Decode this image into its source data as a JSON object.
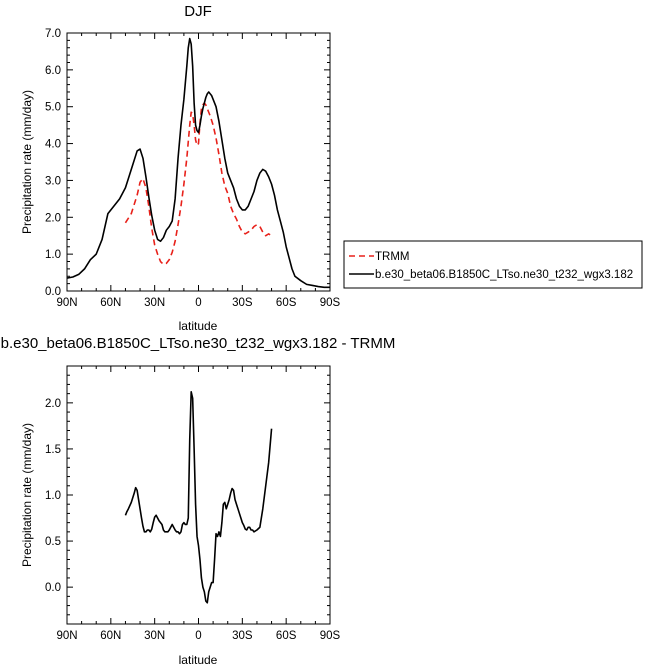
{
  "chart_data": [
    {
      "type": "line",
      "title": "DJF",
      "xlabel": "latitude",
      "ylabel": "Precipitation rate (mm/day)",
      "x_ticks": [
        -90,
        -60,
        -30,
        0,
        30,
        60,
        90
      ],
      "x_tick_labels": [
        "90N",
        "60N",
        "30N",
        "0",
        "30S",
        "60S",
        "90S"
      ],
      "y_ticks": [
        0,
        1,
        2,
        3,
        4,
        5,
        6,
        7
      ],
      "y_tick_labels": [
        "0.0",
        "1.0",
        "2.0",
        "3.0",
        "4.0",
        "5.0",
        "6.0",
        "7.0"
      ],
      "xlim": [
        -90,
        90
      ],
      "ylim": [
        0,
        7
      ],
      "legend": "outside-right",
      "series": [
        {
          "name": "TRMM",
          "color": "#e8211a",
          "dash": true,
          "x": [
            -50,
            -46,
            -42,
            -40,
            -38,
            -36,
            -34,
            -32,
            -30,
            -28,
            -26,
            -24,
            -22,
            -20,
            -18,
            -16,
            -14,
            -12,
            -10,
            -8,
            -6,
            -5,
            -4,
            -3,
            -2,
            -1,
            0,
            1,
            2,
            3,
            4,
            5,
            6,
            7,
            8,
            10,
            12,
            14,
            16,
            18,
            20,
            22,
            24,
            26,
            28,
            30,
            32,
            34,
            36,
            38,
            40,
            42,
            44,
            46,
            48,
            50
          ],
          "y": [
            1.85,
            2.1,
            2.6,
            2.95,
            3.05,
            2.8,
            2.3,
            1.7,
            1.25,
            1.0,
            0.8,
            0.72,
            0.75,
            0.85,
            1.05,
            1.35,
            1.8,
            2.3,
            2.9,
            3.6,
            4.5,
            4.85,
            4.8,
            4.5,
            4.1,
            3.95,
            4.0,
            4.55,
            4.95,
            5.05,
            5.1,
            5.05,
            4.95,
            4.85,
            4.75,
            4.5,
            4.15,
            3.7,
            3.2,
            2.85,
            2.65,
            2.3,
            2.1,
            1.95,
            1.75,
            1.6,
            1.55,
            1.6,
            1.65,
            1.75,
            1.8,
            1.75,
            1.6,
            1.5,
            1.55,
            1.5
          ]
        },
        {
          "name": "b.e30_beta06.B1850C_LTso.ne30_t232_wgx3.182",
          "color": "#000000",
          "dash": false,
          "x": [
            -90,
            -86,
            -82,
            -78,
            -74,
            -70,
            -66,
            -62,
            -58,
            -54,
            -50,
            -46,
            -42,
            -40,
            -38,
            -36,
            -34,
            -32,
            -30,
            -28,
            -26,
            -24,
            -22,
            -20,
            -18,
            -16,
            -14,
            -12,
            -10,
            -8,
            -7,
            -6,
            -5,
            -4,
            -3,
            -2,
            -1,
            0,
            1,
            2,
            3,
            4,
            5,
            6,
            7,
            8,
            9,
            10,
            12,
            14,
            16,
            18,
            20,
            22,
            24,
            26,
            28,
            30,
            32,
            34,
            36,
            38,
            40,
            42,
            44,
            46,
            48,
            50,
            52,
            54,
            56,
            58,
            60,
            62,
            64,
            66,
            70,
            74,
            78,
            82,
            86,
            90
          ],
          "y": [
            0.35,
            0.38,
            0.45,
            0.6,
            0.85,
            1.0,
            1.4,
            2.1,
            2.3,
            2.5,
            2.8,
            3.3,
            3.8,
            3.85,
            3.6,
            3.1,
            2.55,
            2.05,
            1.65,
            1.4,
            1.35,
            1.45,
            1.65,
            1.75,
            1.9,
            2.5,
            3.6,
            4.5,
            5.2,
            6.1,
            6.6,
            6.85,
            6.7,
            6.1,
            5.1,
            4.5,
            4.35,
            4.3,
            4.5,
            4.75,
            4.95,
            5.1,
            5.25,
            5.35,
            5.4,
            5.35,
            5.3,
            5.2,
            5.0,
            4.6,
            4.1,
            3.6,
            3.2,
            3.0,
            2.8,
            2.5,
            2.3,
            2.2,
            2.2,
            2.3,
            2.5,
            2.7,
            3.0,
            3.2,
            3.3,
            3.25,
            3.1,
            2.9,
            2.6,
            2.2,
            1.9,
            1.6,
            1.2,
            0.9,
            0.6,
            0.4,
            0.28,
            0.18,
            0.15,
            0.12,
            0.1,
            0.1
          ]
        }
      ]
    },
    {
      "type": "line",
      "title": "b.e30_beta06.B1850C_LTso.ne30_t232_wgx3.182 - TRMM",
      "xlabel": "latitude",
      "ylabel": "Precipitation rate (mm/day)",
      "x_ticks": [
        -90,
        -60,
        -30,
        0,
        30,
        60,
        90
      ],
      "x_tick_labels": [
        "90N",
        "60N",
        "30N",
        "0",
        "30S",
        "60S",
        "90S"
      ],
      "y_ticks": [
        0,
        0.5,
        1,
        1.5,
        2
      ],
      "y_tick_labels": [
        "0.0",
        "0.5",
        "1.0",
        "1.5",
        "2.0"
      ],
      "xlim": [
        -90,
        90
      ],
      "ylim": [
        -0.4,
        2.4
      ],
      "series": [
        {
          "color": "#000000",
          "dash": false,
          "x": [
            -50,
            -49,
            -48,
            -46,
            -44,
            -43,
            -42,
            -41,
            -40,
            -39,
            -38,
            -37,
            -36,
            -35,
            -34,
            -33,
            -32,
            -31,
            -30,
            -29,
            -28,
            -27,
            -26,
            -25,
            -24,
            -23,
            -22,
            -21,
            -20,
            -19,
            -18,
            -17,
            -16,
            -15,
            -14,
            -13,
            -12,
            -11,
            -10,
            -9,
            -8,
            -7,
            -6,
            -5,
            -4,
            -3,
            -2,
            -1,
            0,
            1,
            2,
            3,
            4,
            5,
            6,
            7,
            8,
            9,
            10,
            11,
            12,
            13,
            14,
            15,
            16,
            17,
            18,
            19,
            20,
            21,
            22,
            23,
            24,
            25,
            26,
            27,
            28,
            29,
            30,
            31,
            32,
            33,
            34,
            35,
            36,
            37,
            38,
            40,
            42,
            44,
            46,
            48,
            50
          ],
          "y": [
            0.78,
            0.82,
            0.85,
            0.92,
            1.02,
            1.08,
            1.05,
            0.95,
            0.85,
            0.75,
            0.66,
            0.6,
            0.6,
            0.62,
            0.62,
            0.6,
            0.63,
            0.7,
            0.76,
            0.78,
            0.75,
            0.72,
            0.7,
            0.68,
            0.62,
            0.6,
            0.6,
            0.6,
            0.62,
            0.65,
            0.68,
            0.65,
            0.62,
            0.6,
            0.6,
            0.58,
            0.6,
            0.68,
            0.7,
            0.68,
            0.68,
            0.75,
            1.6,
            2.12,
            2.05,
            1.5,
            0.9,
            0.55,
            0.45,
            0.3,
            0.1,
            0.0,
            -0.05,
            -0.15,
            -0.17,
            -0.05,
            0.0,
            0.05,
            0.05,
            0.3,
            0.58,
            0.55,
            0.6,
            0.55,
            0.7,
            0.9,
            0.92,
            0.85,
            0.9,
            0.95,
            1.02,
            1.07,
            1.05,
            0.95,
            0.9,
            0.85,
            0.8,
            0.75,
            0.7,
            0.67,
            0.63,
            0.62,
            0.65,
            0.65,
            0.62,
            0.62,
            0.6,
            0.62,
            0.65,
            0.85,
            1.1,
            1.35,
            1.72
          ]
        }
      ]
    }
  ]
}
